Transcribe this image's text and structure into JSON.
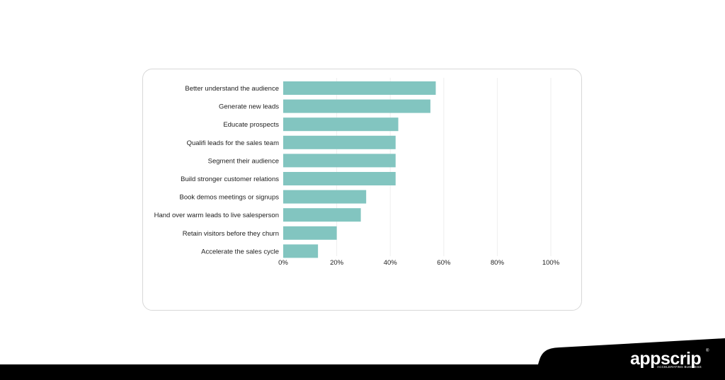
{
  "chart_data": {
    "type": "bar",
    "orientation": "horizontal",
    "categories": [
      "Better understand the audience",
      "Generate new leads",
      "Educate prospects",
      "Qualifi leads for the sales team",
      "Segment their audience",
      "Build stronger customer relations",
      "Book demos meetings or signups",
      "Hand over warm leads to live salesperson",
      "Retain visitors before they churn",
      "Accelerate the sales cycle"
    ],
    "values": [
      57,
      55,
      43,
      42,
      42,
      42,
      31,
      29,
      20,
      13
    ],
    "xlim": [
      0,
      100
    ],
    "x_ticks": [
      "0%",
      "20%",
      "40%",
      "60%",
      "80%",
      "100%"
    ],
    "x_tick_values": [
      0,
      20,
      40,
      60,
      80,
      100
    ],
    "bar_color": "#82c5c0",
    "grid": true
  },
  "brand": {
    "name": "appscrip",
    "tagline": "ACCELERATING BUSINESS",
    "registered_mark": "®"
  },
  "colors": {
    "footer": "#000000",
    "card_border": "#d8d8d8",
    "text": "#1e1e1e"
  }
}
